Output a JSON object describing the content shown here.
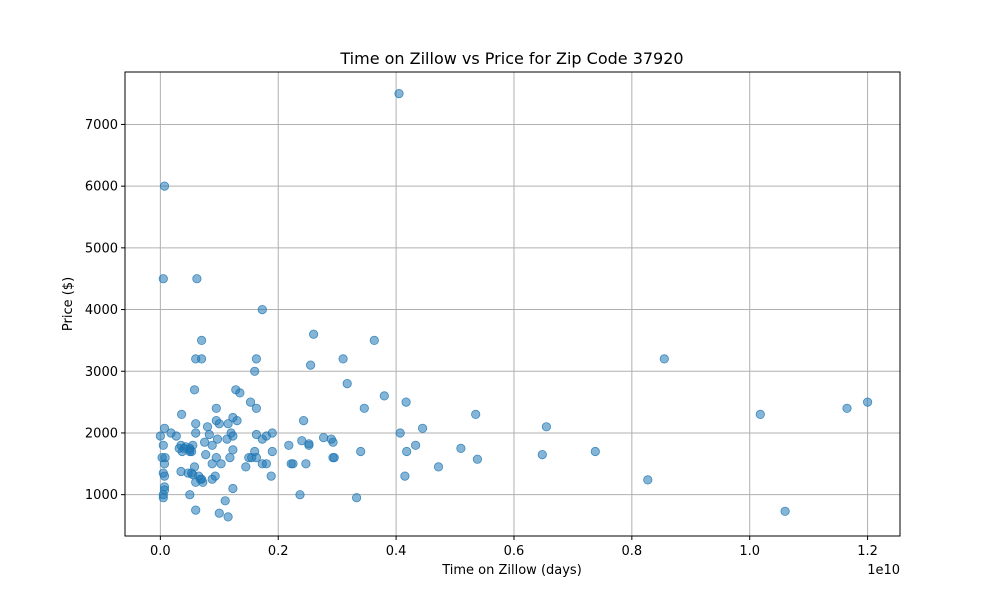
{
  "chart_data": {
    "type": "scatter",
    "title": "Time on Zillow vs Price for Zip Code 37920",
    "xlabel": "Time on Zillow (days)",
    "ylabel": "Price ($)",
    "x_offset_label": "1e10",
    "xlim": [
      -0.06,
      1.255
    ],
    "ylim": [
      330,
      7850
    ],
    "x_ticks": [
      0.0,
      0.2,
      0.4,
      0.6,
      0.8,
      1.0,
      1.2
    ],
    "x_tick_labels": [
      "0.0",
      "0.2",
      "0.4",
      "0.6",
      "0.8",
      "1.0",
      "1.2"
    ],
    "y_ticks": [
      1000,
      2000,
      3000,
      4000,
      5000,
      6000,
      7000
    ],
    "y_tick_labels": [
      "1000",
      "2000",
      "3000",
      "4000",
      "5000",
      "6000",
      "7000"
    ],
    "grid": true,
    "marker_color": "#1f77b4",
    "marker_alpha": 0.55,
    "points": [
      [
        0.405,
        7500
      ],
      [
        0.007,
        6000
      ],
      [
        0.005,
        4500
      ],
      [
        0.062,
        4500
      ],
      [
        0.173,
        4000
      ],
      [
        0.26,
        3600
      ],
      [
        0.363,
        3500
      ],
      [
        0.07,
        3500
      ],
      [
        0.06,
        3200
      ],
      [
        0.07,
        3200
      ],
      [
        0.163,
        3200
      ],
      [
        0.31,
        3200
      ],
      [
        0.855,
        3200
      ],
      [
        0.255,
        3100
      ],
      [
        0.16,
        3000
      ],
      [
        0.317,
        2800
      ],
      [
        0.058,
        2700
      ],
      [
        0.128,
        2700
      ],
      [
        0.135,
        2650
      ],
      [
        0.38,
        2600
      ],
      [
        0.153,
        2500
      ],
      [
        0.417,
        2500
      ],
      [
        1.2,
        2500
      ],
      [
        0.095,
        2400
      ],
      [
        0.163,
        2400
      ],
      [
        0.346,
        2400
      ],
      [
        1.165,
        2400
      ],
      [
        0.036,
        2300
      ],
      [
        0.095,
        2200
      ],
      [
        0.123,
        2250
      ],
      [
        0.243,
        2200
      ],
      [
        0.535,
        2300
      ],
      [
        1.018,
        2300
      ],
      [
        0.06,
        2150
      ],
      [
        0.08,
        2100
      ],
      [
        0.1,
        2150
      ],
      [
        0.115,
        2150
      ],
      [
        0.13,
        2200
      ],
      [
        0.445,
        2075
      ],
      [
        0.655,
        2100
      ],
      [
        0.007,
        2075
      ],
      [
        0.018,
        2000
      ],
      [
        0.06,
        2000
      ],
      [
        0.083,
        1975
      ],
      [
        0.12,
        2000
      ],
      [
        0.163,
        1975
      ],
      [
        0.19,
        2000
      ],
      [
        0.407,
        2000
      ],
      [
        0.0,
        1950
      ],
      [
        0.027,
        1950
      ],
      [
        0.097,
        1900
      ],
      [
        0.113,
        1900
      ],
      [
        0.123,
        1950
      ],
      [
        0.173,
        1900
      ],
      [
        0.18,
        1950
      ],
      [
        0.24,
        1875
      ],
      [
        0.277,
        1925
      ],
      [
        0.29,
        1900
      ],
      [
        0.293,
        1850
      ],
      [
        0.005,
        1800
      ],
      [
        0.035,
        1800
      ],
      [
        0.055,
        1800
      ],
      [
        0.075,
        1850
      ],
      [
        0.088,
        1800
      ],
      [
        0.218,
        1800
      ],
      [
        0.252,
        1825
      ],
      [
        0.252,
        1800
      ],
      [
        0.433,
        1800
      ],
      [
        0.032,
        1750
      ],
      [
        0.04,
        1750
      ],
      [
        0.043,
        1775
      ],
      [
        0.05,
        1725
      ],
      [
        0.037,
        1700
      ],
      [
        0.05,
        1700
      ],
      [
        0.05,
        1750
      ],
      [
        0.053,
        1700
      ],
      [
        0.123,
        1725
      ],
      [
        0.16,
        1700
      ],
      [
        0.19,
        1700
      ],
      [
        0.34,
        1700
      ],
      [
        0.418,
        1700
      ],
      [
        0.51,
        1750
      ],
      [
        0.738,
        1700
      ],
      [
        0.077,
        1650
      ],
      [
        0.003,
        1600
      ],
      [
        0.008,
        1600
      ],
      [
        0.095,
        1600
      ],
      [
        0.118,
        1600
      ],
      [
        0.15,
        1600
      ],
      [
        0.155,
        1600
      ],
      [
        0.163,
        1600
      ],
      [
        0.293,
        1600
      ],
      [
        0.295,
        1600
      ],
      [
        0.538,
        1575
      ],
      [
        0.648,
        1650
      ],
      [
        0.007,
        1500
      ],
      [
        0.058,
        1450
      ],
      [
        0.088,
        1500
      ],
      [
        0.103,
        1500
      ],
      [
        0.145,
        1450
      ],
      [
        0.173,
        1500
      ],
      [
        0.18,
        1500
      ],
      [
        0.222,
        1500
      ],
      [
        0.225,
        1500
      ],
      [
        0.247,
        1500
      ],
      [
        0.472,
        1450
      ],
      [
        0.035,
        1375
      ],
      [
        0.047,
        1350
      ],
      [
        0.053,
        1350
      ],
      [
        0.055,
        1325
      ],
      [
        0.005,
        1350
      ],
      [
        0.007,
        1300
      ],
      [
        0.065,
        1300
      ],
      [
        0.068,
        1250
      ],
      [
        0.07,
        1250
      ],
      [
        0.072,
        1200
      ],
      [
        0.088,
        1250
      ],
      [
        0.093,
        1300
      ],
      [
        0.06,
        1200
      ],
      [
        0.188,
        1300
      ],
      [
        0.415,
        1300
      ],
      [
        0.827,
        1240
      ],
      [
        0.007,
        1125
      ],
      [
        0.007,
        1075
      ],
      [
        0.123,
        1100
      ],
      [
        0.005,
        1000
      ],
      [
        0.005,
        950
      ],
      [
        0.05,
        1000
      ],
      [
        0.237,
        1000
      ],
      [
        0.333,
        950
      ],
      [
        0.11,
        900
      ],
      [
        0.06,
        750
      ],
      [
        0.1,
        700
      ],
      [
        0.115,
        640
      ],
      [
        1.06,
        730
      ]
    ]
  }
}
